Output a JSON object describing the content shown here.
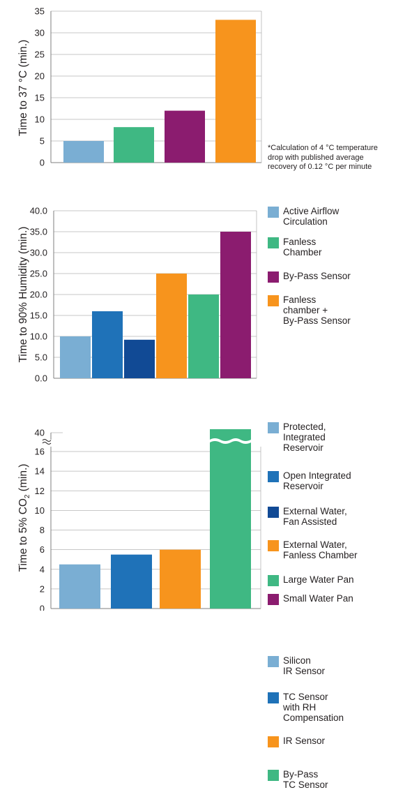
{
  "colors": {
    "light_blue": "#7aaed3",
    "blue": "#1f72b8",
    "dark_blue": "#114a95",
    "green": "#3fb883",
    "purple": "#8b1c6f",
    "orange": "#f7941d"
  },
  "chart_data": [
    {
      "type": "bar",
      "ylabel": "Time to 37 °C  (min.)",
      "ylim": [
        0,
        35
      ],
      "yticks": [
        0,
        5,
        10,
        15,
        20,
        25,
        30,
        35
      ],
      "grid": true,
      "legend": "right",
      "series": [
        {
          "name": "Active Airflow\nCirculation",
          "value": 5,
          "color": "#7aaed3"
        },
        {
          "name": "Fanless\nChamber",
          "value": 8.2,
          "color": "#3fb883"
        },
        {
          "name": "By-Pass Sensor",
          "value": 12,
          "color": "#8b1c6f"
        },
        {
          "name": "Fanless\nchamber +\nBy-Pass Sensor",
          "value": 33,
          "color": "#f7941d"
        }
      ],
      "footnote": "*Calculation of 4 °C temperature\ndrop with published average\nrecovery of 0.12 °C per minute"
    },
    {
      "type": "bar",
      "ylabel": "Time to 90% Humidity (min.)",
      "ylim": [
        0,
        40
      ],
      "yticks": [
        "0.0",
        "5.0",
        "10.0",
        "15.0",
        "20.0",
        "25.0",
        "30.0",
        "35.0",
        "40.0"
      ],
      "grid": true,
      "legend": "right",
      "series": [
        {
          "name": "Protected,\nIntegrated\nReservoir",
          "value": 10,
          "color": "#7aaed3"
        },
        {
          "name": "Open Integrated\nReservoir",
          "value": 16,
          "color": "#1f72b8"
        },
        {
          "name": "External Water,\nFan Assisted",
          "value": 9.2,
          "color": "#114a95"
        },
        {
          "name": "External Water,\nFanless Chamber",
          "value": 25,
          "color": "#f7941d"
        },
        {
          "name": "Large Water Pan",
          "value": 20,
          "color": "#3fb883"
        },
        {
          "name": "Small Water Pan",
          "value": 35,
          "color": "#8b1c6f"
        }
      ]
    },
    {
      "type": "bar",
      "ylabel_main": "Time to 5% CO",
      "ylabel_sub": "2",
      "ylabel_tail": " (min.)",
      "ylim": [
        0,
        16
      ],
      "axis_break": true,
      "break_top_label": "40",
      "yticks": [
        0,
        2,
        4,
        6,
        8,
        10,
        12,
        14,
        16
      ],
      "grid": true,
      "legend": "right",
      "series": [
        {
          "name": "Silicon\nIR Sensor",
          "value": 4.5,
          "color": "#7aaed3"
        },
        {
          "name": "TC Sensor\nwith RH\nCompensation",
          "value": 5.5,
          "color": "#1f72b8"
        },
        {
          "name": "IR Sensor",
          "value": 6,
          "color": "#f7941d"
        },
        {
          "name": "By-Pass\nTC Sensor",
          "value": 40,
          "color": "#3fb883"
        }
      ]
    }
  ]
}
